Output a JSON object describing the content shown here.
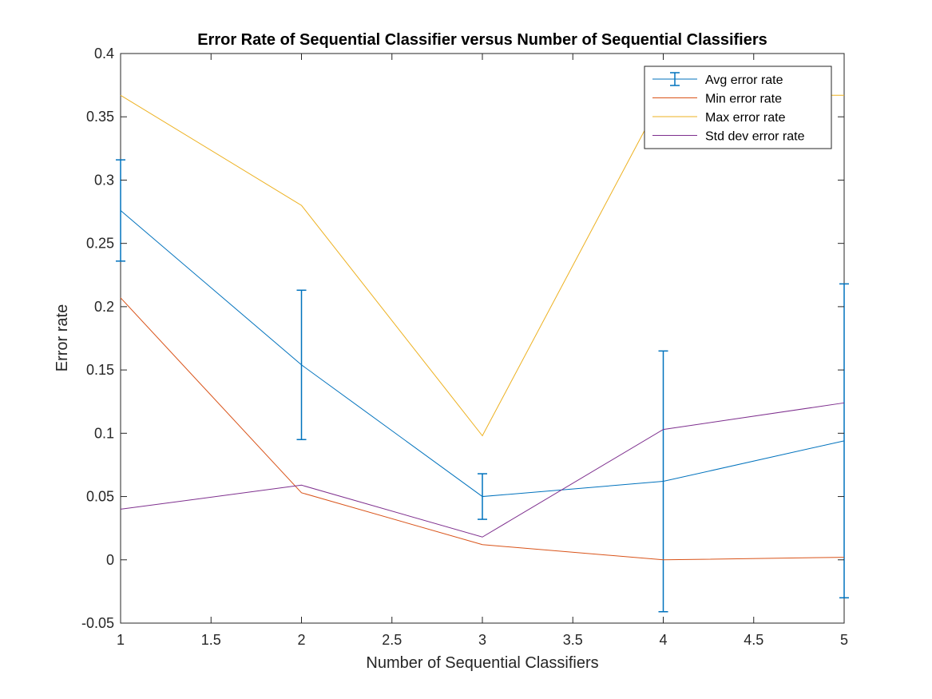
{
  "chart_data": {
    "type": "line",
    "title": "Error Rate of Sequential Classifier versus Number of Sequential Classifiers",
    "xlabel": "Number of Sequential Classifiers",
    "ylabel": "Error rate",
    "xlim": [
      1,
      5
    ],
    "ylim": [
      -0.05,
      0.4
    ],
    "xticks": [
      1,
      1.5,
      2,
      2.5,
      3,
      3.5,
      4,
      4.5,
      5
    ],
    "xtick_labels": [
      "1",
      "1.5",
      "2",
      "2.5",
      "3",
      "3.5",
      "4",
      "4.5",
      "5"
    ],
    "yticks": [
      -0.05,
      0,
      0.05,
      0.1,
      0.15,
      0.2,
      0.25,
      0.3,
      0.35,
      0.4
    ],
    "ytick_labels": [
      "-0.05",
      "0",
      "0.05",
      "0.1",
      "0.15",
      "0.2",
      "0.25",
      "0.3",
      "0.35",
      "0.4"
    ],
    "grid": false,
    "legend_position": "top-right",
    "x": [
      1,
      2,
      3,
      4,
      5
    ],
    "series": [
      {
        "name": "Avg error rate",
        "color": "#0072BD",
        "errorbar": true,
        "values": [
          0.276,
          0.154,
          0.05,
          0.062,
          0.094
        ],
        "err": [
          0.04,
          0.059,
          0.018,
          0.103,
          0.124
        ]
      },
      {
        "name": "Min error rate",
        "color": "#D95319",
        "values": [
          0.207,
          0.053,
          0.012,
          0.0,
          0.002
        ]
      },
      {
        "name": "Max error rate",
        "color": "#EDB120",
        "values": [
          0.367,
          0.28,
          0.098,
          0.367,
          0.367
        ]
      },
      {
        "name": "Std dev error rate",
        "color": "#7E2F8E",
        "values": [
          0.04,
          0.059,
          0.018,
          0.103,
          0.124
        ]
      }
    ]
  }
}
